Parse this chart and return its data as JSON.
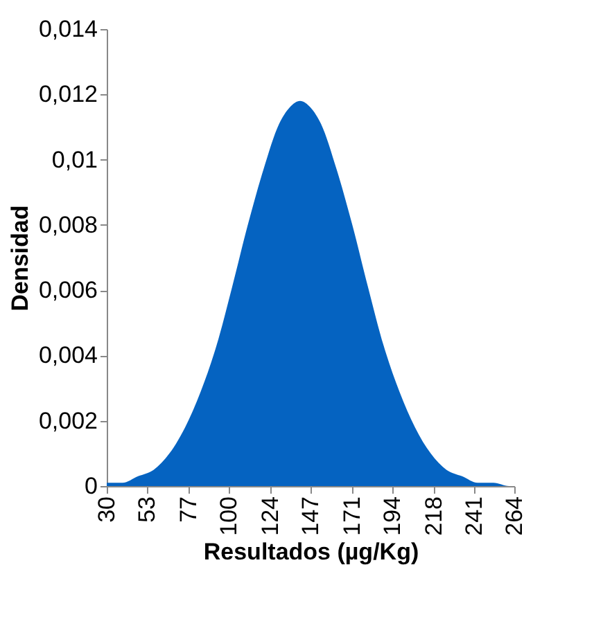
{
  "chart_data": {
    "type": "area",
    "xlabel": "Resultados (µg/Kg)",
    "ylabel": "Densidad",
    "x": [
      30,
      39,
      48,
      57,
      66,
      75,
      84,
      93,
      102,
      111,
      120,
      129,
      135,
      141,
      147,
      153,
      162,
      171,
      180,
      189,
      198,
      207,
      216,
      225,
      234,
      243,
      252,
      261,
      264
    ],
    "series": [
      {
        "color": "#0563c1",
        "values": [
          0.0001,
          0.0001,
          0.0003,
          0.0005,
          0.001,
          0.0018,
          0.0029,
          0.0043,
          0.0061,
          0.008,
          0.0097,
          0.0111,
          0.0116,
          0.0118,
          0.0116,
          0.0111,
          0.0097,
          0.008,
          0.0061,
          0.0043,
          0.0029,
          0.0018,
          0.001,
          0.0005,
          0.0003,
          0.0001,
          0.0001,
          0,
          0
        ]
      }
    ],
    "xlim": [
      30,
      264
    ],
    "xticks": [
      30,
      53,
      77,
      100,
      124,
      147,
      171,
      194,
      218,
      241,
      264
    ],
    "ylim": [
      0,
      0.014
    ],
    "yticks": [
      0,
      {
        "value": 0.002,
        "label": "0,002"
      },
      {
        "value": 0.004,
        "label": "0,004"
      },
      {
        "value": 0.006,
        "label": "0,006"
      },
      {
        "value": 0.008,
        "label": "0,008"
      },
      {
        "value": 0.01,
        "label": "0,01"
      },
      {
        "value": 0.012,
        "label": "0,012"
      },
      {
        "value": 0.014,
        "label": "0,014"
      }
    ],
    "grid": false
  }
}
